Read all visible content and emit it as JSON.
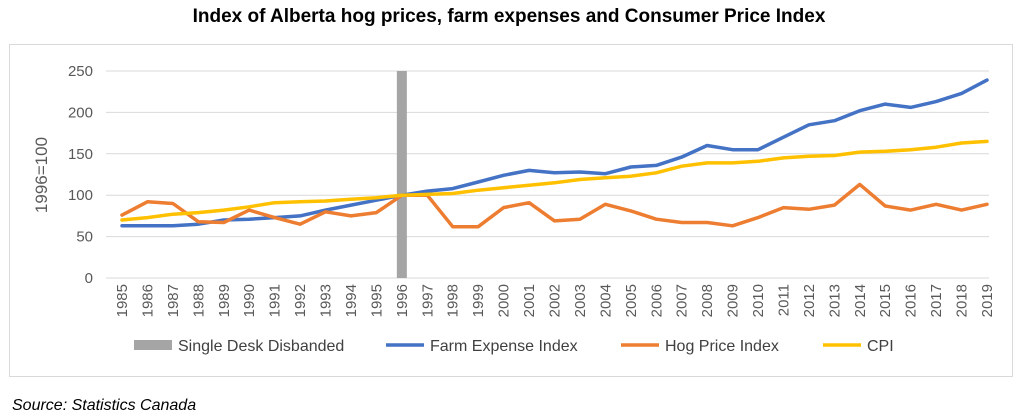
{
  "source": "Source: Statistics Canada",
  "chart_data": {
    "type": "line",
    "title": "Index of Alberta hog prices, farm expenses and Consumer Price Index",
    "ylabel": "1996=100",
    "xlabel": "",
    "ylim": [
      0,
      250
    ],
    "yticks": [
      0,
      50,
      100,
      150,
      200,
      250
    ],
    "grid": true,
    "legend_position": "bottom",
    "categories": [
      "1985",
      "1986",
      "1987",
      "1988",
      "1989",
      "1990",
      "1991",
      "1992",
      "1993",
      "1994",
      "1995",
      "1996",
      "1997",
      "1998",
      "1999",
      "2000",
      "2001",
      "2002",
      "2003",
      "2004",
      "2005",
      "2006",
      "2007",
      "2008",
      "2009",
      "2010",
      "2011",
      "2012",
      "2013",
      "2014",
      "2015",
      "2016",
      "2017",
      "2018",
      "2019"
    ],
    "marker": {
      "name": "Single Desk Disbanded",
      "category": "1996",
      "value": 250,
      "color": "#a5a5a5"
    },
    "series": [
      {
        "name": "Farm Expense Index",
        "color": "#4472c4",
        "values": [
          63,
          63,
          63,
          65,
          70,
          71,
          73,
          75,
          82,
          88,
          94,
          100,
          105,
          108,
          116,
          124,
          130,
          127,
          128,
          126,
          134,
          136,
          146,
          160,
          155,
          155,
          170,
          185,
          190,
          202,
          210,
          206,
          213,
          223,
          239
        ]
      },
      {
        "name": "Hog Price Index",
        "color": "#ed7d31",
        "values": [
          76,
          92,
          90,
          68,
          67,
          82,
          73,
          65,
          80,
          75,
          79,
          100,
          100,
          62,
          62,
          85,
          91,
          69,
          71,
          89,
          81,
          71,
          67,
          67,
          63,
          73,
          85,
          83,
          88,
          113,
          87,
          82,
          89,
          82,
          89
        ]
      },
      {
        "name": "CPI",
        "color": "#ffc000",
        "values": [
          70,
          73,
          77,
          79,
          82,
          86,
          91,
          92,
          93,
          95,
          97,
          100,
          101,
          102,
          106,
          109,
          112,
          115,
          119,
          121,
          123,
          127,
          135,
          139,
          139,
          141,
          145,
          147,
          148,
          152,
          153,
          155,
          158,
          163,
          165
        ]
      }
    ]
  }
}
